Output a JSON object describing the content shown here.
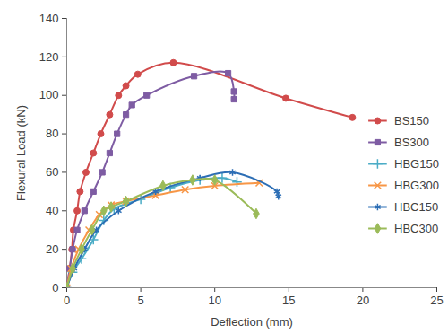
{
  "chart_data": {
    "type": "line",
    "x_label": "Deflection (mm)",
    "y_label": "Flexural Load (kN)",
    "xlim": [
      0,
      25
    ],
    "xticks": [
      0,
      5,
      10,
      15,
      20,
      25
    ],
    "ylim": [
      0,
      140
    ],
    "yticks": [
      0,
      20,
      40,
      60,
      80,
      100,
      120,
      140
    ],
    "grid": false,
    "legend": "right",
    "series": [
      {
        "name": "BS150",
        "color": "#d14b4b",
        "marker": "circle",
        "line_style": "solid",
        "x": [
          0,
          0.2,
          0.35,
          0.45,
          0.7,
          0.9,
          1.3,
          1.8,
          2.3,
          2.9,
          3.5,
          4.0,
          4.8,
          7.2,
          14.8,
          19.3
        ],
        "values": [
          0,
          10,
          20,
          30,
          40,
          50,
          60,
          70,
          80,
          90,
          100,
          105,
          111,
          117,
          98.5,
          88.5
        ]
      },
      {
        "name": "BS300",
        "color": "#7e5ca3",
        "marker": "square",
        "line_style": "solid",
        "x": [
          0,
          0.2,
          0.4,
          0.7,
          1.2,
          1.8,
          2.4,
          2.9,
          3.4,
          4.0,
          4.4,
          5.4,
          8.6,
          10.9,
          11.3,
          11.3
        ],
        "values": [
          0,
          10,
          20,
          30,
          40,
          50,
          60,
          70,
          80,
          90,
          95,
          100,
          110,
          111.5,
          102,
          98
        ]
      },
      {
        "name": "HBG150",
        "color": "#4bacc6",
        "marker": "plus",
        "line_style": "solid",
        "x": [
          0,
          0.4,
          1.0,
          1.8,
          2.5,
          3.2,
          5.0,
          7.0,
          9.0,
          10.5,
          11.5
        ],
        "values": [
          0,
          8,
          15,
          25,
          35,
          41,
          46,
          52,
          56,
          57,
          55
        ]
      },
      {
        "name": "HBG300",
        "color": "#f79646",
        "marker": "times",
        "line_style": "solid",
        "x": [
          0,
          0.3,
          0.8,
          1.5,
          2.2,
          3.0,
          4.0,
          6.0,
          8.0,
          10.0,
          13.0
        ],
        "values": [
          0,
          10,
          20,
          30,
          38,
          43,
          45,
          48,
          51,
          53,
          54.5
        ]
      },
      {
        "name": "HBC150",
        "color": "#2c6eb5",
        "marker": "asterisk",
        "line_style": "solid",
        "x": [
          0,
          0.5,
          1.2,
          2.0,
          3.5,
          6.0,
          9.0,
          11.2,
          14.2,
          14.3
        ],
        "values": [
          0,
          10,
          20,
          30,
          40,
          50,
          57,
          60,
          50,
          47.5
        ]
      },
      {
        "name": "HBC300",
        "color": "#9bbb59",
        "marker": "diamond",
        "line_style": "solid",
        "x": [
          0,
          0.4,
          1.0,
          1.7,
          2.5,
          3.0,
          4.0,
          6.5,
          8.5,
          10.0,
          12.8
        ],
        "values": [
          0,
          10,
          20,
          30,
          40,
          42,
          45,
          53,
          56,
          56,
          38.5
        ]
      }
    ]
  }
}
